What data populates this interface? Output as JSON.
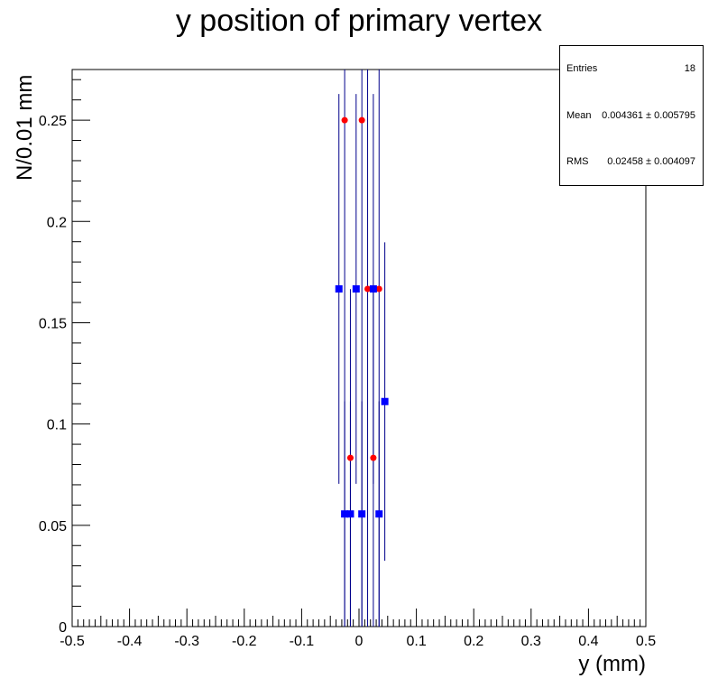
{
  "chart_data": {
    "type": "scatter",
    "title": "y position of primary vertex",
    "xlabel": "y (mm)",
    "ylabel": "N/0.01 mm",
    "xlim": [
      -0.5,
      0.5
    ],
    "ylim": [
      0,
      0.275
    ],
    "x_ticks": [
      "-0.5",
      "-0.4",
      "-0.3",
      "-0.2",
      "-0.1",
      "0",
      "0.1",
      "0.2",
      "0.3",
      "0.4",
      "0.5"
    ],
    "y_ticks": [
      "0",
      "0.05",
      "0.1",
      "0.15",
      "0.2",
      "0.25"
    ],
    "grid": false,
    "series": [
      {
        "marker": "circle",
        "color": "#ff0000",
        "points": [
          {
            "x": -0.025,
            "y": 0.25,
            "err": 0.25
          },
          {
            "x": 0.005,
            "y": 0.25,
            "err": 0.25
          },
          {
            "x": -0.015,
            "y": 0.0833,
            "err": 0.0833
          },
          {
            "x": 0.025,
            "y": 0.0833,
            "err": 0.0833
          },
          {
            "x": 0.015,
            "y": 0.1667,
            "err": 0.1667
          },
          {
            "x": 0.035,
            "y": 0.1667,
            "err": 0.1667
          }
        ]
      },
      {
        "marker": "square",
        "color": "#0000ff",
        "points": [
          {
            "x": -0.035,
            "y": 0.1667,
            "err": 0.0962
          },
          {
            "x": -0.005,
            "y": 0.1667,
            "err": 0.0962
          },
          {
            "x": 0.025,
            "y": 0.1667,
            "err": 0.0962
          },
          {
            "x": 0.045,
            "y": 0.1111,
            "err": 0.0786
          },
          {
            "x": -0.025,
            "y": 0.0556,
            "err": 0.0556
          },
          {
            "x": -0.015,
            "y": 0.0556,
            "err": 0.0556
          },
          {
            "x": 0.005,
            "y": 0.0556,
            "err": 0.0556
          },
          {
            "x": 0.035,
            "y": 0.0556,
            "err": 0.0556
          }
        ]
      }
    ]
  },
  "stats": {
    "entries_label": "Entries",
    "entries_value": "18",
    "mean_label": "Mean",
    "mean_value": "0.004361 ± 0.005795",
    "rms_label": "RMS",
    "rms_value": "0.02458 ± 0.004097"
  },
  "colors": {
    "errorbar": "#00008b"
  }
}
